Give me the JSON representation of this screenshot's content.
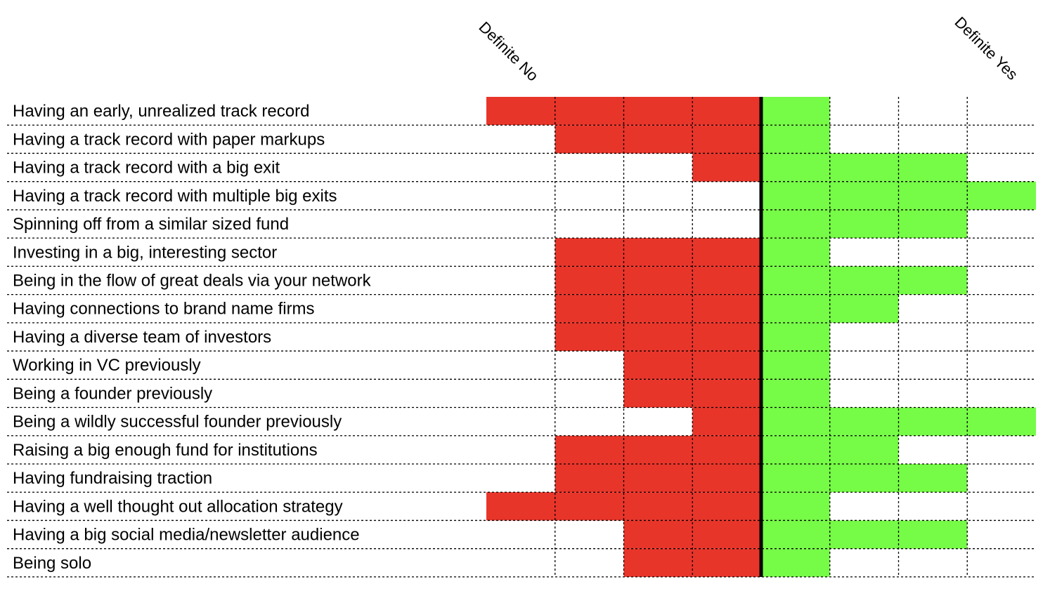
{
  "chart_data": {
    "type": "heatmap",
    "title": "",
    "scale_labels": {
      "left": "Definite No",
      "right": "Definite Yes"
    },
    "no_columns": 4,
    "yes_columns": 4,
    "rows": [
      {
        "label": "Having an early, unrealized track record",
        "no": 4,
        "yes": 1
      },
      {
        "label": "Having a track record with paper markups",
        "no": 3,
        "yes": 1
      },
      {
        "label": "Having a track record with a big exit",
        "no": 1,
        "yes": 3
      },
      {
        "label": "Having a track record with multiple big exits",
        "no": 0,
        "yes": 4
      },
      {
        "label": "Spinning off from a similar sized fund",
        "no": 0,
        "yes": 3
      },
      {
        "label": "Investing in a big, interesting sector",
        "no": 3,
        "yes": 1
      },
      {
        "label": "Being in the flow of great deals via your network",
        "no": 3,
        "yes": 3
      },
      {
        "label": "Having connections to brand name firms",
        "no": 3,
        "yes": 2
      },
      {
        "label": "Having a diverse team of investors",
        "no": 3,
        "yes": 1
      },
      {
        "label": "Working in VC previously",
        "no": 2,
        "yes": 1
      },
      {
        "label": "Being a founder previously",
        "no": 2,
        "yes": 1
      },
      {
        "label": "Being a wildly successful founder previously",
        "no": 1,
        "yes": 4
      },
      {
        "label": "Raising a big enough fund for institutions",
        "no": 3,
        "yes": 2
      },
      {
        "label": "Having fundraising traction",
        "no": 3,
        "yes": 3
      },
      {
        "label": "Having a well thought out allocation strategy",
        "no": 4,
        "yes": 1
      },
      {
        "label": "Having a big social media/newsletter audience",
        "no": 2,
        "yes": 3
      },
      {
        "label": "Being solo",
        "no": 2,
        "yes": 1
      }
    ],
    "colors": {
      "no": "#e8352a",
      "yes": "#76fb47",
      "grid": "#000000",
      "background": "#ffffff"
    }
  }
}
